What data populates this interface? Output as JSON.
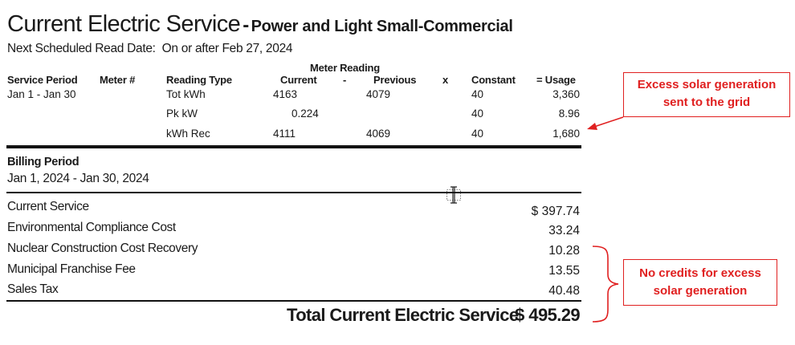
{
  "header": {
    "title": "Current Electric Service",
    "separator": "-",
    "subtitle": "Power and Light Small-Commercial",
    "read_date_label": "Next Scheduled Read Date:",
    "read_date_value": "On or after Feb 27, 2024"
  },
  "meter": {
    "group_label": "Meter Reading",
    "columns": {
      "service_period": "Service Period",
      "meter": "Meter #",
      "reading_type": "Reading Type",
      "current": "Current",
      "minus": "-",
      "previous": "Previous",
      "times": "x",
      "constant": "Constant",
      "usage": "= Usage"
    },
    "service_period_value": "Jan 1 - Jan 30",
    "rows": [
      {
        "type": "Tot kWh",
        "current": "4163",
        "previous": "4079",
        "constant": "40",
        "usage": "3,360"
      },
      {
        "type": "Pk kW",
        "current": "0.224",
        "previous": "",
        "constant": "40",
        "usage": "8.96"
      },
      {
        "type": "kWh Rec",
        "current": "4111",
        "previous": "4069",
        "constant": "40",
        "usage": "1,680"
      }
    ]
  },
  "billing": {
    "heading": "Billing Period",
    "dates": "Jan 1, 2024 - Jan 30, 2024",
    "lines": [
      {
        "label": "Current Service",
        "amount": "$ 397.74"
      },
      {
        "label": "Environmental Compliance Cost",
        "amount": "33.24"
      },
      {
        "label": "Nuclear Construction Cost Recovery",
        "amount": "10.28"
      },
      {
        "label": "Municipal Franchise Fee",
        "amount": "13.55"
      },
      {
        "label": "Sales Tax",
        "amount": "40.48"
      }
    ],
    "total_label": "Total Current Electric Service",
    "total_amount": "$ 495.29"
  },
  "annotations": {
    "callout_1": {
      "line1": "Excess solar generation",
      "line2": "sent to the grid"
    },
    "callout_2": {
      "line1": "No credits for excess",
      "line2": "solar generation"
    },
    "color": "#e02020"
  },
  "icons": {
    "cursor": "text-cursor-icon"
  }
}
